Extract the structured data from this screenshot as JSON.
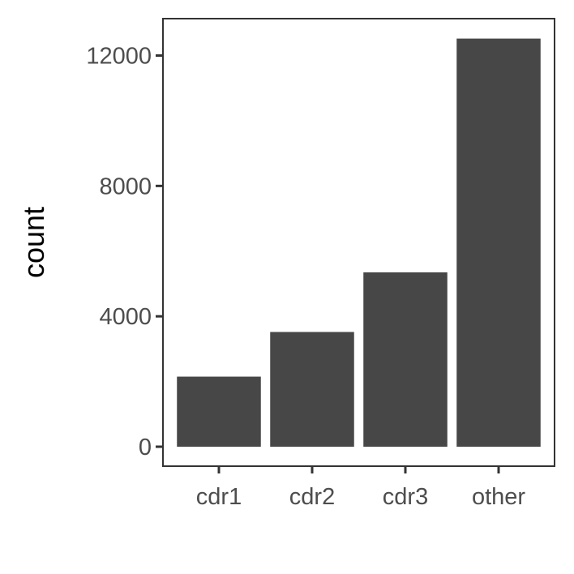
{
  "chart_data": {
    "type": "bar",
    "categories": [
      "cdr1",
      "cdr2",
      "cdr3",
      "other"
    ],
    "values": [
      2150,
      3520,
      5350,
      12520
    ],
    "title": "",
    "xlabel": "",
    "ylabel": "count",
    "ylim": [
      0,
      13000
    ],
    "yticks": [
      0,
      4000,
      8000,
      12000
    ],
    "grid": false,
    "colors": {
      "bar": "#474747",
      "panel_border": "#333333",
      "tick": "#333333",
      "text": "#4d4d4d",
      "background": "#ffffff"
    }
  }
}
